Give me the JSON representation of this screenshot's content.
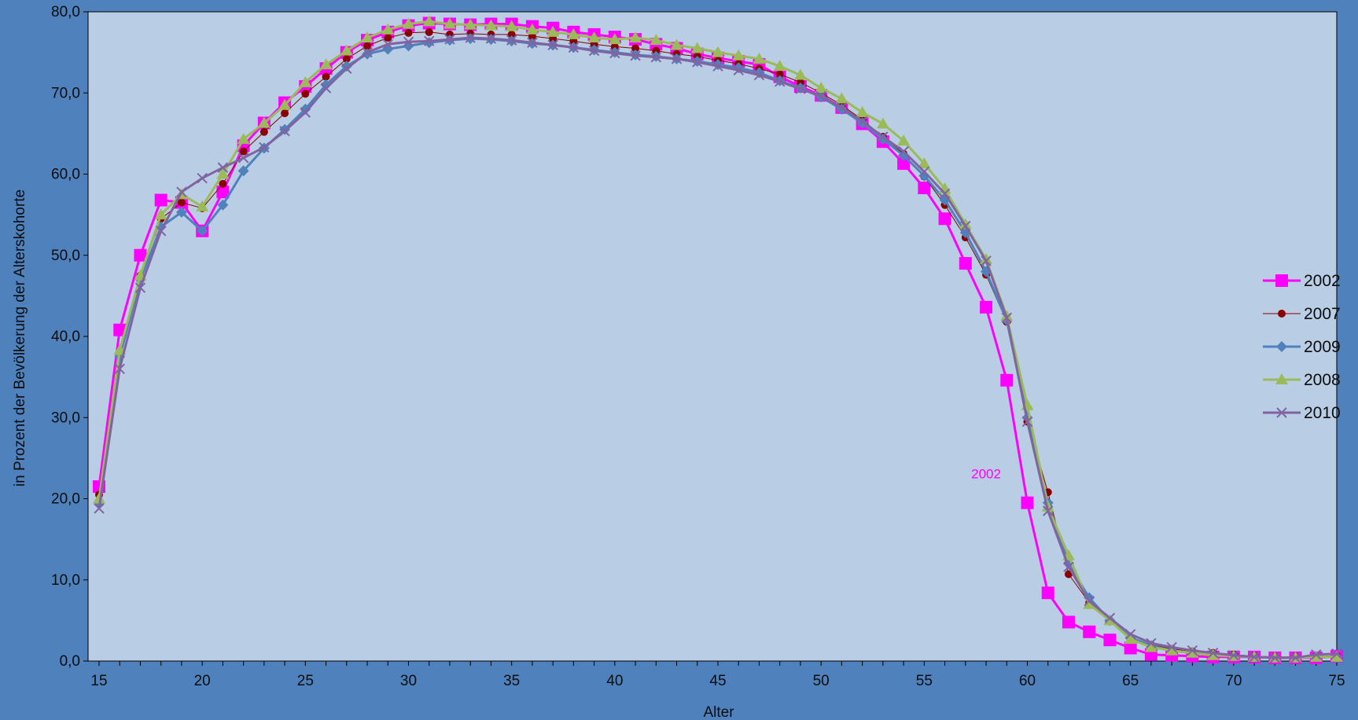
{
  "chart_data": {
    "type": "line",
    "title": "",
    "xlabel": "Alter",
    "ylabel": "in Prozent der Bevölkerung der Alterskohorte",
    "xlim": [
      15,
      75
    ],
    "ylim": [
      0,
      80
    ],
    "x_ticks": [
      "15",
      "20",
      "25",
      "30",
      "35",
      "40",
      "45",
      "50",
      "55",
      "60",
      "65",
      "70",
      "75"
    ],
    "y_ticks": [
      "0,0",
      "10,0",
      "20,0",
      "30,0",
      "40,0",
      "50,0",
      "60,0",
      "70,0",
      "80,0"
    ],
    "grid": false,
    "legend_position": "right",
    "annotation": {
      "text": "2002",
      "x": 58,
      "y": 22.5,
      "color": "#ff00ff"
    },
    "x": [
      15,
      16,
      17,
      18,
      19,
      20,
      21,
      22,
      23,
      24,
      25,
      26,
      27,
      28,
      29,
      30,
      31,
      32,
      33,
      34,
      35,
      36,
      37,
      38,
      39,
      40,
      41,
      42,
      43,
      44,
      45,
      46,
      47,
      48,
      49,
      50,
      51,
      52,
      53,
      54,
      55,
      56,
      57,
      58,
      59,
      60,
      61,
      62,
      63,
      64,
      65,
      66,
      67,
      68,
      69,
      70,
      71,
      72,
      73,
      74,
      75
    ],
    "series": [
      {
        "name": "2002",
        "color": "#ff00ff",
        "marker": "square",
        "line_width": 3,
        "values": [
          21.5,
          40.8,
          50.0,
          56.8,
          56.5,
          53.0,
          57.8,
          63.5,
          66.3,
          68.8,
          70.8,
          73.0,
          75.0,
          76.5,
          77.5,
          78.3,
          78.6,
          78.5,
          78.4,
          78.5,
          78.5,
          78.2,
          78.0,
          77.5,
          77.2,
          76.9,
          76.6,
          76.0,
          75.5,
          74.8,
          74.3,
          73.9,
          73.5,
          72.0,
          70.8,
          69.7,
          68.2,
          66.2,
          64.0,
          61.3,
          58.3,
          54.5,
          49.0,
          43.6,
          34.6,
          19.5,
          8.4,
          4.8,
          3.6,
          2.6,
          1.6,
          0.8,
          0.7,
          0.6,
          0.5,
          0.5,
          0.5,
          0.4,
          0.4,
          0.4,
          0.6
        ]
      },
      {
        "name": "2007",
        "color": "#8b0000",
        "marker": "circle",
        "line_width": 1,
        "values": [
          20.5,
          38.0,
          47.5,
          54.5,
          56.5,
          55.8,
          58.8,
          62.8,
          65.2,
          67.5,
          69.9,
          72.0,
          74.2,
          75.8,
          76.8,
          77.4,
          77.5,
          77.2,
          77.3,
          77.2,
          77.2,
          77.0,
          76.7,
          76.4,
          76.0,
          75.7,
          75.5,
          75.2,
          74.8,
          74.5,
          74.0,
          73.6,
          73.0,
          72.3,
          71.3,
          70.0,
          68.5,
          66.7,
          64.6,
          62.5,
          59.7,
          56.2,
          52.2,
          47.6,
          41.8,
          29.5,
          20.8,
          10.7,
          7.2,
          5.0,
          2.9,
          2.0,
          1.5,
          1.2,
          1.0,
          0.8,
          0.6,
          0.5,
          0.5,
          0.6,
          0.6
        ]
      },
      {
        "name": "2009",
        "color": "#4f81bd",
        "marker": "diamond",
        "line_width": 3,
        "values": [
          19.5,
          37.5,
          47.0,
          53.5,
          55.3,
          53.0,
          56.2,
          60.4,
          63.2,
          65.5,
          68.0,
          71.0,
          73.3,
          74.8,
          75.4,
          75.8,
          76.2,
          76.5,
          76.7,
          76.6,
          76.4,
          76.1,
          75.9,
          75.6,
          75.3,
          75.0,
          74.7,
          74.5,
          74.2,
          73.9,
          73.5,
          73.1,
          72.5,
          71.5,
          70.6,
          69.5,
          68.0,
          66.3,
          64.3,
          62.3,
          59.8,
          56.8,
          52.8,
          48.0,
          42.0,
          30.0,
          19.5,
          12.0,
          7.8,
          5.0,
          2.9,
          1.9,
          1.3,
          1.0,
          0.8,
          0.6,
          0.5,
          0.4,
          0.4,
          0.5,
          0.5
        ]
      },
      {
        "name": "2008",
        "color": "#9bbb59",
        "marker": "triangle",
        "line_width": 3,
        "values": [
          20.0,
          38.3,
          47.5,
          55.0,
          57.5,
          56.0,
          60.0,
          64.3,
          66.3,
          68.5,
          71.3,
          73.5,
          75.2,
          76.8,
          77.8,
          78.5,
          78.8,
          78.5,
          78.4,
          78.3,
          78.2,
          77.8,
          77.5,
          77.2,
          76.8,
          76.6,
          76.8,
          76.5,
          75.9,
          75.5,
          75.0,
          74.6,
          74.2,
          73.3,
          72.2,
          70.6,
          69.3,
          67.6,
          66.2,
          64.1,
          61.3,
          58.2,
          53.8,
          49.5,
          42.5,
          31.5,
          19.0,
          13.0,
          7.0,
          5.0,
          2.7,
          1.7,
          1.3,
          1.0,
          0.7,
          0.6,
          0.5,
          0.4,
          0.4,
          0.5,
          0.5
        ]
      },
      {
        "name": "2010",
        "color": "#8064a2",
        "marker": "x",
        "line_width": 3,
        "values": [
          18.8,
          36.0,
          46.0,
          53.0,
          57.8,
          59.5,
          60.8,
          62.0,
          63.3,
          65.3,
          67.6,
          70.6,
          73.0,
          75.0,
          76.0,
          76.3,
          76.4,
          76.6,
          76.8,
          76.7,
          76.5,
          76.2,
          75.9,
          75.6,
          75.2,
          74.9,
          74.6,
          74.4,
          74.2,
          73.8,
          73.3,
          72.8,
          72.2,
          71.4,
          70.5,
          69.6,
          68.2,
          66.5,
          64.6,
          62.8,
          60.3,
          57.6,
          53.6,
          49.3,
          42.3,
          29.5,
          18.5,
          11.6,
          7.4,
          5.3,
          3.3,
          2.2,
          1.7,
          1.3,
          1.0,
          0.7,
          0.5,
          0.4,
          0.4,
          0.8,
          0.9
        ]
      }
    ],
    "legend_order": [
      "2002",
      "2007",
      "2009",
      "2008",
      "2010"
    ]
  }
}
